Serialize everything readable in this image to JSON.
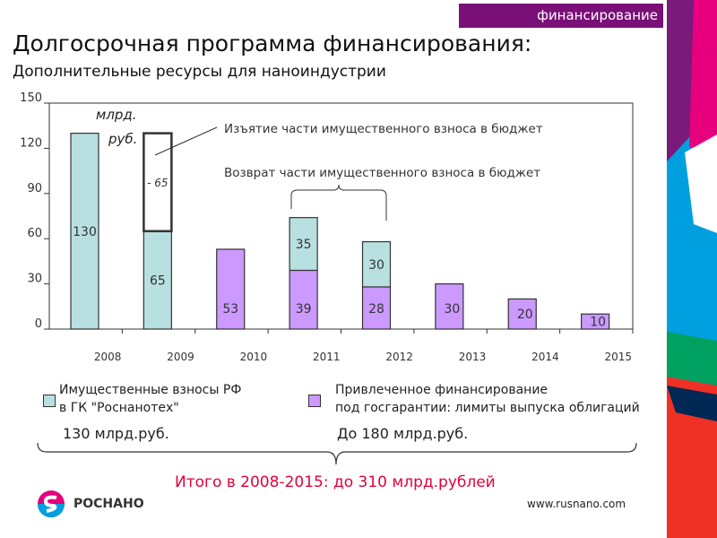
{
  "header": {
    "tag": "финансирование",
    "title": "Долгосрочная программа финансирования:",
    "subtitle": "Дополнительные ресурсы для наноиндустрии"
  },
  "chart_data": {
    "type": "bar",
    "stacked": true,
    "categories": [
      "2008",
      "2009",
      "2010",
      "2011",
      "2012",
      "2013",
      "2014",
      "2015"
    ],
    "ylim": [
      0,
      150
    ],
    "yticks": [
      0,
      30,
      60,
      90,
      120,
      150
    ],
    "unit_label": "млрд. руб.",
    "series": [
      {
        "name": "Привлеченное финансирование под госгарантии",
        "color": "#cc99ff",
        "values": [
          0,
          0,
          53,
          39,
          28,
          30,
          20,
          10
        ]
      },
      {
        "name": "Имущественные взносы РФ в ГК \"Роснанотех\"",
        "color": "#b8e0e0",
        "values": [
          130,
          65,
          0,
          35,
          30,
          0,
          0,
          0
        ]
      },
      {
        "name": "Изъятие",
        "color": "#ffffff",
        "values": [
          0,
          65,
          0,
          0,
          0,
          0,
          0,
          0
        ]
      }
    ],
    "labels": [
      [
        "130"
      ],
      [
        "65",
        "- 65"
      ],
      [
        "53"
      ],
      [
        "39",
        "35"
      ],
      [
        "28",
        "30"
      ],
      [
        "30"
      ],
      [
        "20"
      ],
      [
        "10"
      ]
    ],
    "annotations": [
      "Изъятие части имущественного взноса в бюджет",
      "Возврат части имущественного взноса в бюджет"
    ]
  },
  "legend": {
    "item1_line1": "Имущественные взносы РФ",
    "item1_line2": "в ГК \"Роснанотех\"",
    "item2_line1": "Привлеченное финансирование",
    "item2_line2": "под госгарантии: лимиты выпуска облигаций",
    "amount1": "130 млрд.руб.",
    "amount2": "До 180 млрд.руб."
  },
  "total": "Итого в 2008-2015: до 310 млрд.рублей",
  "footer": {
    "logo": "РОСНАНО",
    "url": "www.rusnano.com"
  }
}
